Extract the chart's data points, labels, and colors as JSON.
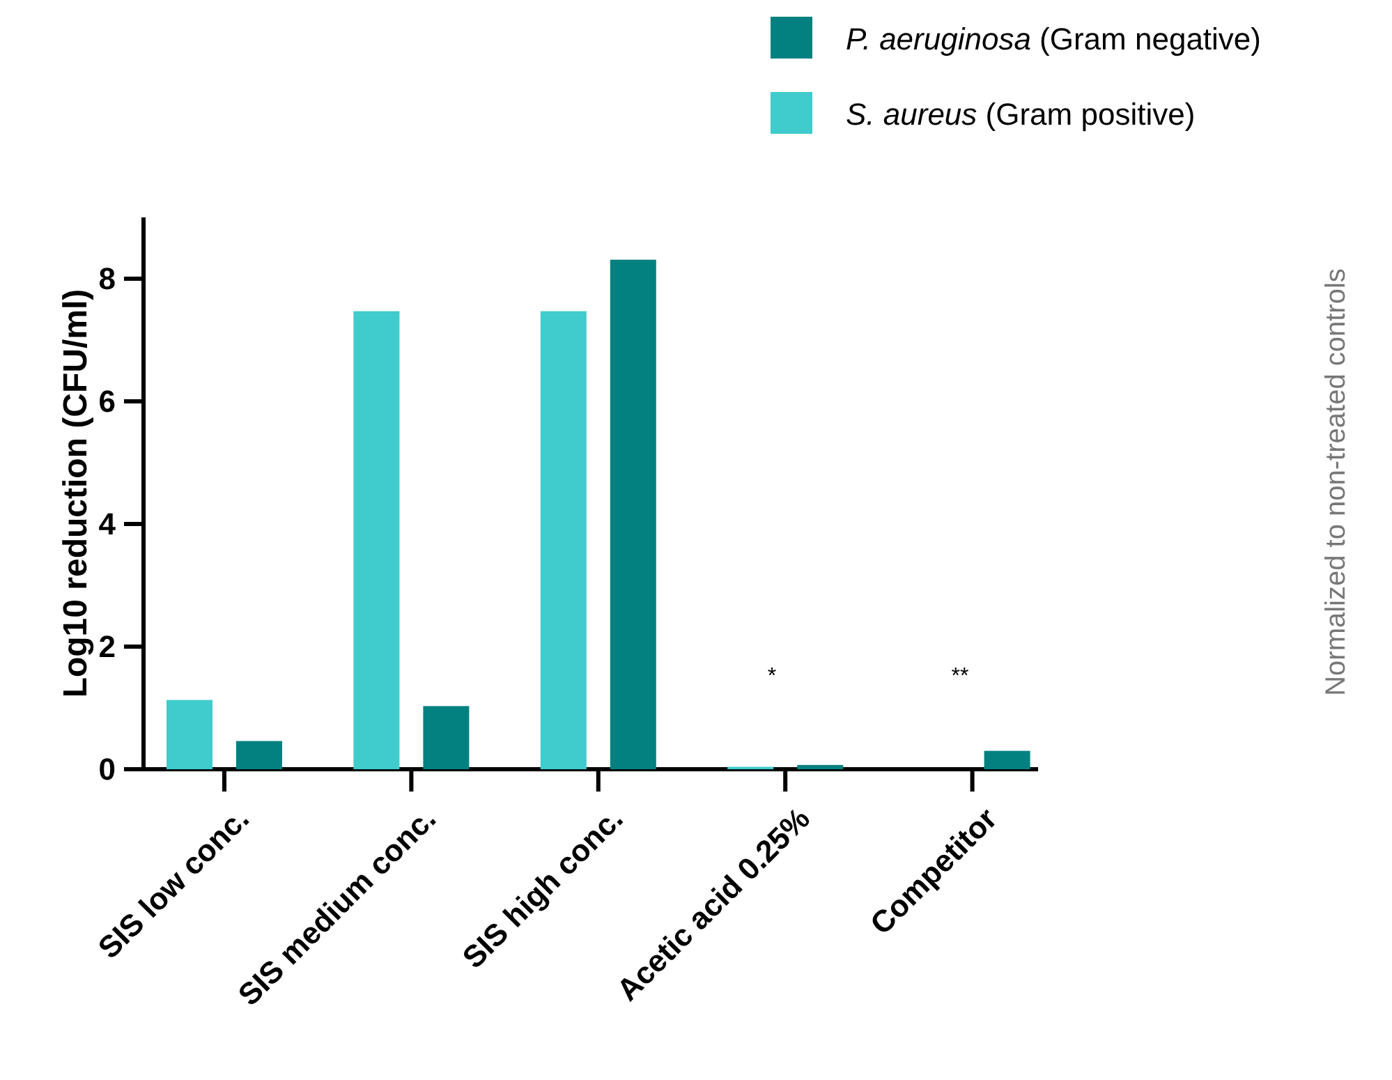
{
  "chart_data": {
    "type": "bar",
    "ylabel": "Log10 reduction (CFU/ml)",
    "categories": [
      "SIS low conc.",
      "SIS medium conc.",
      "SIS high conc.",
      "Acetic acid 0.25%",
      "Competitor"
    ],
    "series": [
      {
        "name": "S. aureus (Gram positive)",
        "color": "#40cbcc",
        "values": [
          1.13,
          7.47,
          7.47,
          0.04,
          null
        ]
      },
      {
        "name": "P. aeruginosa (Gram negative)",
        "color": "#038180",
        "values": [
          0.46,
          1.03,
          8.31,
          0.07,
          0.3
        ]
      }
    ],
    "ylim": [
      0,
      9
    ],
    "yticks": [
      0,
      2,
      4,
      6,
      8
    ],
    "grid": false,
    "legend": "top right",
    "annotations": [
      "*",
      "**",
      "Normalized to non-treated controls"
    ]
  }
}
